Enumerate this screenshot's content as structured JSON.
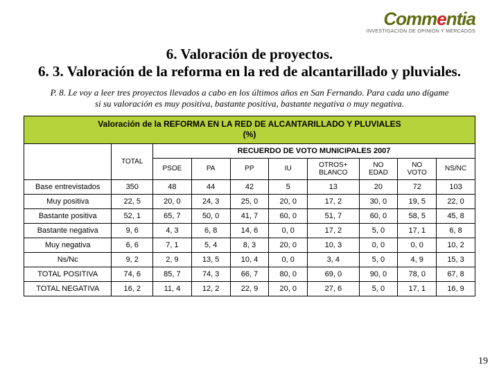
{
  "logo": {
    "brand_pre": "Comm",
    "brand_accent": "e",
    "brand_post": "ntia",
    "brand_color_pre": "#5f6b12",
    "brand_color_accent": "#d21f1f",
    "tagline": "INVESTIGACION DE OPINION Y MERCADOS"
  },
  "titles": {
    "line1": "6. Valoración de proyectos.",
    "line2": "6. 3. Valoración de la reforma en la red de alcantarillado y pluviales."
  },
  "question": "P. 8. Le voy a leer tres proyectos llevados a cabo en los últimos años en San Fernando. Para cada uno dígame si su valoración es muy positiva, bastante positiva, bastante negativa o muy negativa.",
  "table": {
    "header_bar": "Valoración de la REFORMA EN LA RED DE ALCANTARILLADO Y PLUVIALES\n(%)",
    "header_bar_bg": "#b6d33c",
    "total_label": "TOTAL",
    "group_label": "RECUERDO DE VOTO MUNICIPALES 2007",
    "columns": [
      "PSOE",
      "PA",
      "PP",
      "IU",
      "OTROS+\nBLANCO",
      "NO\nEDAD",
      "NO\nVOTO",
      "NS/NC"
    ],
    "rows": [
      {
        "label": "Base entrevistados",
        "total": "350",
        "vals": [
          "48",
          "44",
          "42",
          "5",
          "13",
          "20",
          "72",
          "103"
        ]
      },
      {
        "label": "Muy positiva",
        "total": "22, 5",
        "vals": [
          "20, 0",
          "24, 3",
          "25, 0",
          "20, 0",
          "17, 2",
          "30, 0",
          "19, 5",
          "22, 0"
        ]
      },
      {
        "label": "Bastante positiva",
        "total": "52, 1",
        "vals": [
          "65, 7",
          "50, 0",
          "41, 7",
          "60, 0",
          "51, 7",
          "60, 0",
          "58, 5",
          "45, 8"
        ]
      },
      {
        "label": "Bastante negativa",
        "total": "9, 6",
        "vals": [
          "4, 3",
          "6, 8",
          "14, 6",
          "0, 0",
          "17, 2",
          "5, 0",
          "17, 1",
          "6, 8"
        ]
      },
      {
        "label": "Muy negativa",
        "total": "6, 6",
        "vals": [
          "7, 1",
          "5, 4",
          "8, 3",
          "20, 0",
          "10, 3",
          "0, 0",
          "0, 0",
          "10, 2"
        ]
      },
      {
        "label": "Ns/Nc",
        "total": "9, 2",
        "vals": [
          "2, 9",
          "13, 5",
          "10, 4",
          "0, 0",
          "3, 4",
          "5, 0",
          "4, 9",
          "15, 3"
        ]
      },
      {
        "label": "TOTAL POSITIVA",
        "total": "74, 6",
        "vals": [
          "85, 7",
          "74, 3",
          "66, 7",
          "80, 0",
          "69, 0",
          "90, 0",
          "78, 0",
          "67, 8"
        ]
      },
      {
        "label": "TOTAL NEGATIVA",
        "total": "16, 2",
        "vals": [
          "11, 4",
          "12, 2",
          "22, 9",
          "20, 0",
          "27, 6",
          "5, 0",
          "17, 1",
          "16, 9"
        ]
      }
    ]
  },
  "page_number": "19"
}
